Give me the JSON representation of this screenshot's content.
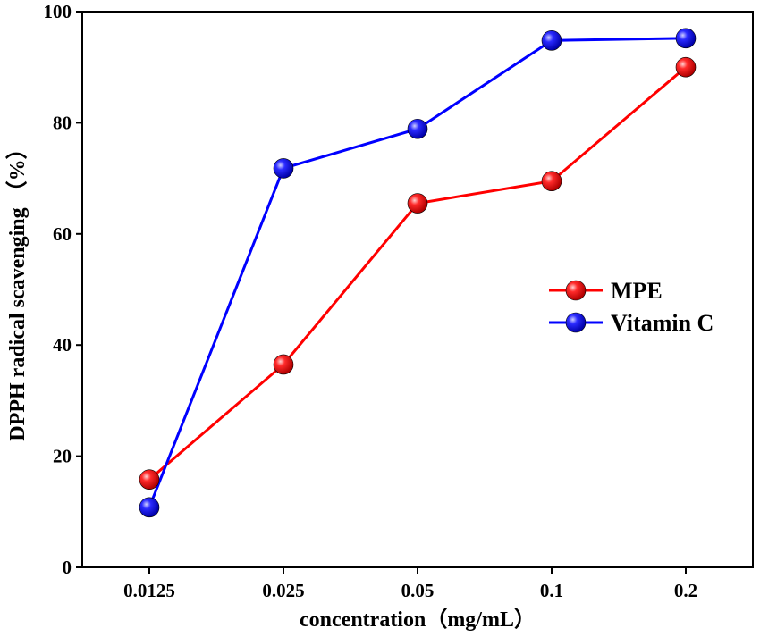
{
  "chart_data": {
    "type": "line",
    "categories": [
      "0.0125",
      "0.025",
      "0.05",
      "0.1",
      "0.2"
    ],
    "series": [
      {
        "name": "MPE",
        "values": [
          15.8,
          36.5,
          65.5,
          69.5,
          90.0
        ],
        "color": "#ff0000"
      },
      {
        "name": "Vitamin C",
        "values": [
          10.8,
          71.8,
          78.9,
          94.8,
          95.2
        ],
        "color": "#0000ff"
      }
    ],
    "xlabel": "concentration（mg/mL）",
    "ylabel": "DPPH radical scavenging （%）",
    "ylim": [
      0,
      100
    ],
    "yticks": [
      0,
      20,
      40,
      60,
      80,
      100
    ],
    "grid": false,
    "legend_position": "right"
  }
}
